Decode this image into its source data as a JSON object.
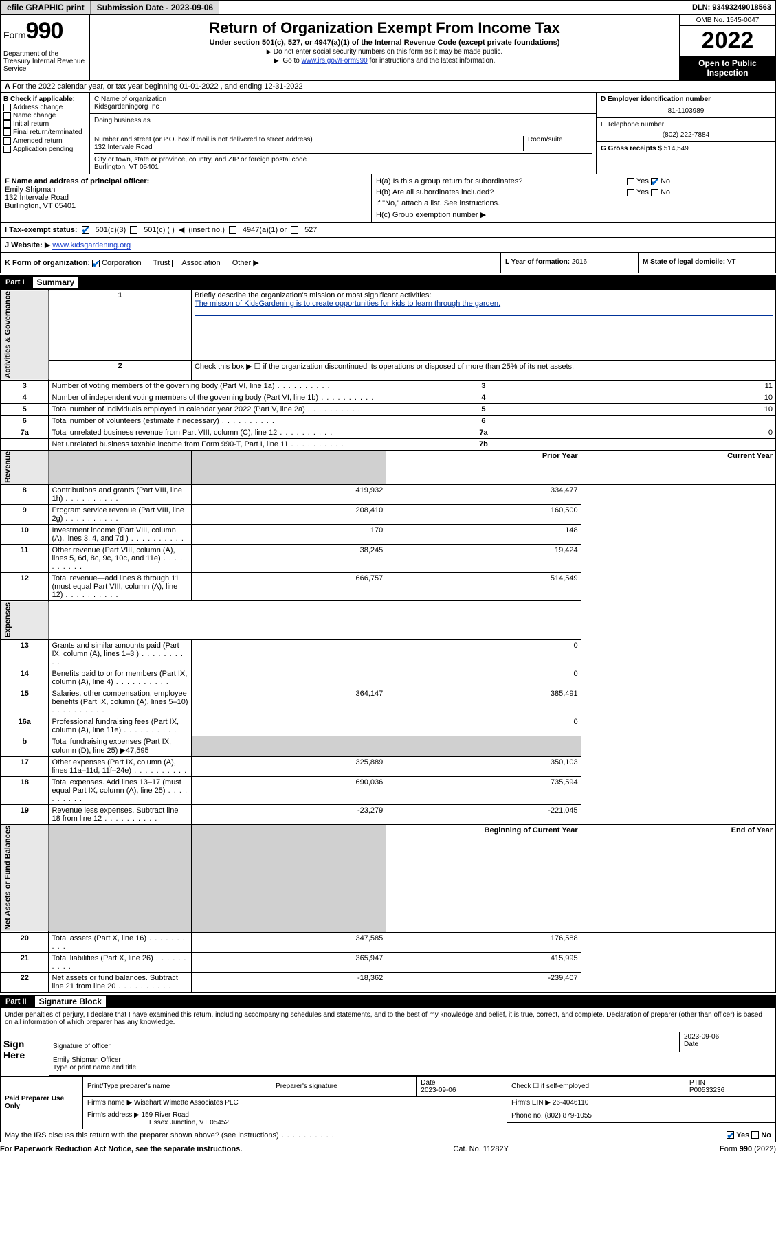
{
  "topbar": {
    "efile_label": "efile GRAPHIC print",
    "submission_label": "Submission Date - 2023-09-06",
    "dln_label": "DLN: 93493249018563"
  },
  "header": {
    "form_label": "Form",
    "form_number": "990",
    "dept": "Department of the Treasury Internal Revenue Service",
    "title": "Return of Organization Exempt From Income Tax",
    "subtitle": "Under section 501(c), 527, or 4947(a)(1) of the Internal Revenue Code (except private foundations)",
    "note1": "Do not enter social security numbers on this form as it may be made public.",
    "note2_pre": "Go to ",
    "note2_link": "www.irs.gov/Form990",
    "note2_post": " for instructions and the latest information.",
    "omb": "OMB No. 1545-0047",
    "year": "2022",
    "open_public": "Open to Public Inspection"
  },
  "rowA": {
    "text": "For the 2022 calendar year, or tax year beginning 01-01-2022   , and ending 12-31-2022"
  },
  "boxB": {
    "label": "B Check if applicable:",
    "items": [
      "Address change",
      "Name change",
      "Initial return",
      "Final return/terminated",
      "Amended return",
      "Application pending"
    ]
  },
  "boxC": {
    "name_label": "C Name of organization",
    "name": "Kidsgardeningorg Inc",
    "dba_label": "Doing business as",
    "street_label": "Number and street (or P.O. box if mail is not delivered to street address)",
    "suite_label": "Room/suite",
    "street": "132 Intervale Road",
    "city_label": "City or town, state or province, country, and ZIP or foreign postal code",
    "city": "Burlington, VT  05401"
  },
  "boxD": {
    "label": "D Employer identification number",
    "value": "81-1103989"
  },
  "boxE": {
    "label": "E Telephone number",
    "value": "(802) 222-7884"
  },
  "boxG": {
    "label": "G Gross receipts $",
    "value": "514,549"
  },
  "boxF": {
    "label": "F  Name and address of principal officer:",
    "name": "Emily Shipman",
    "street": "132 Intervale Road",
    "city": "Burlington, VT  05401"
  },
  "boxH": {
    "ha_label": "H(a)  Is this a group return for subordinates?",
    "ha_yes": "Yes",
    "ha_no": "No",
    "hb_label": "H(b)  Are all subordinates included?",
    "hb_yes": "Yes",
    "hb_no": "No",
    "hb_note": "If \"No,\" attach a list. See instructions.",
    "hc_label": "H(c)  Group exemption number"
  },
  "rowI": {
    "label": "I   Tax-exempt status:",
    "c3": "501(c)(3)",
    "cinsert": "501(c) (  )",
    "insertno": "(insert no.)",
    "a1": "4947(a)(1) or",
    "c527": "527"
  },
  "rowJ": {
    "label": "J   Website:",
    "value": "www.kidsgardening.org"
  },
  "rowK": {
    "label": "K Form of organization:",
    "corp": "Corporation",
    "trust": "Trust",
    "assoc": "Association",
    "other": "Other"
  },
  "rowL": {
    "label": "L Year of formation:",
    "value": "2016"
  },
  "rowM": {
    "label": "M State of legal domicile:",
    "value": "VT"
  },
  "partI": {
    "num": "Part I",
    "title": "Summary"
  },
  "summary": {
    "section_labels": [
      "Activities & Governance",
      "Revenue",
      "Expenses",
      "Net Assets or Fund Balances"
    ],
    "line1_label": "Briefly describe the organization's mission or most significant activities:",
    "line1_text": "The misson of KidsGardening is to create opportunities for kids to learn through the garden.",
    "line2_label": "Check this box ▶ ☐  if the organization discontinued its operations or disposed of more than 25% of its net assets.",
    "lines_top": [
      {
        "n": "3",
        "label": "Number of voting members of the governing body (Part VI, line 1a)",
        "box": "3",
        "val": "11"
      },
      {
        "n": "4",
        "label": "Number of independent voting members of the governing body (Part VI, line 1b)",
        "box": "4",
        "val": "10"
      },
      {
        "n": "5",
        "label": "Total number of individuals employed in calendar year 2022 (Part V, line 2a)",
        "box": "5",
        "val": "10"
      },
      {
        "n": "6",
        "label": "Total number of volunteers (estimate if necessary)",
        "box": "6",
        "val": ""
      },
      {
        "n": "7a",
        "label": "Total unrelated business revenue from Part VIII, column (C), line 12",
        "box": "7a",
        "val": "0"
      },
      {
        "n": "",
        "label": "Net unrelated business taxable income from Form 990-T, Part I, line 11",
        "box": "7b",
        "val": ""
      }
    ],
    "col_prior": "Prior Year",
    "col_current": "Current Year",
    "col_begin": "Beginning of Current Year",
    "col_end": "End of Year",
    "revenue": [
      {
        "n": "8",
        "label": "Contributions and grants (Part VIII, line 1h)",
        "prior": "419,932",
        "curr": "334,477"
      },
      {
        "n": "9",
        "label": "Program service revenue (Part VIII, line 2g)",
        "prior": "208,410",
        "curr": "160,500"
      },
      {
        "n": "10",
        "label": "Investment income (Part VIII, column (A), lines 3, 4, and 7d )",
        "prior": "170",
        "curr": "148"
      },
      {
        "n": "11",
        "label": "Other revenue (Part VIII, column (A), lines 5, 6d, 8c, 9c, 10c, and 11e)",
        "prior": "38,245",
        "curr": "19,424"
      },
      {
        "n": "12",
        "label": "Total revenue—add lines 8 through 11 (must equal Part VIII, column (A), line 12)",
        "prior": "666,757",
        "curr": "514,549"
      }
    ],
    "expenses": [
      {
        "n": "13",
        "label": "Grants and similar amounts paid (Part IX, column (A), lines 1–3 )",
        "prior": "",
        "curr": "0"
      },
      {
        "n": "14",
        "label": "Benefits paid to or for members (Part IX, column (A), line 4)",
        "prior": "",
        "curr": "0"
      },
      {
        "n": "15",
        "label": "Salaries, other compensation, employee benefits (Part IX, column (A), lines 5–10)",
        "prior": "364,147",
        "curr": "385,491"
      },
      {
        "n": "16a",
        "label": "Professional fundraising fees (Part IX, column (A), line 11e)",
        "prior": "",
        "curr": "0"
      },
      {
        "n": "b",
        "label": "Total fundraising expenses (Part IX, column (D), line 25) ▶47,595",
        "prior": "",
        "curr": "",
        "single": true
      },
      {
        "n": "17",
        "label": "Other expenses (Part IX, column (A), lines 11a–11d, 11f–24e)",
        "prior": "325,889",
        "curr": "350,103"
      },
      {
        "n": "18",
        "label": "Total expenses. Add lines 13–17 (must equal Part IX, column (A), line 25)",
        "prior": "690,036",
        "curr": "735,594"
      },
      {
        "n": "19",
        "label": "Revenue less expenses. Subtract line 18 from line 12",
        "prior": "-23,279",
        "curr": "-221,045"
      }
    ],
    "net": [
      {
        "n": "20",
        "label": "Total assets (Part X, line 16)",
        "prior": "347,585",
        "curr": "176,588"
      },
      {
        "n": "21",
        "label": "Total liabilities (Part X, line 26)",
        "prior": "365,947",
        "curr": "415,995"
      },
      {
        "n": "22",
        "label": "Net assets or fund balances. Subtract line 21 from line 20",
        "prior": "-18,362",
        "curr": "-239,407"
      }
    ]
  },
  "partII": {
    "num": "Part II",
    "title": "Signature Block"
  },
  "sig": {
    "pen_text": "Under penalties of perjury, I declare that I have examined this return, including accompanying schedules and statements, and to the best of my knowledge and belief, it is true, correct, and complete. Declaration of preparer (other than officer) is based on all information of which preparer has any knowledge.",
    "sign_here": "Sign Here",
    "sig_officer": "Signature of officer",
    "date": "2023-09-06",
    "date_label": "Date",
    "officer_name": "Emily Shipman  Officer",
    "type_label": "Type or print name and title"
  },
  "preparer": {
    "title": "Paid Preparer Use Only",
    "h_name": "Print/Type preparer's name",
    "h_sig": "Preparer's signature",
    "h_date": "Date",
    "date": "2023-09-06",
    "h_check": "Check ☐ if self-employed",
    "h_ptin": "PTIN",
    "ptin": "P00533236",
    "firm_name_label": "Firm's name   ▶",
    "firm_name": "Wisehart Wimette Associates PLC",
    "firm_ein_label": "Firm's EIN ▶",
    "firm_ein": "26-4046110",
    "firm_addr_label": "Firm's address ▶",
    "firm_addr1": "159 River Road",
    "firm_addr2": "Essex Junction, VT  05452",
    "phone_label": "Phone no.",
    "phone": "(802) 879-1055"
  },
  "discuss": {
    "text": "May the IRS discuss this return with the preparer shown above? (see instructions)",
    "yes": "Yes",
    "no": "No"
  },
  "footer": {
    "left": "For Paperwork Reduction Act Notice, see the separate instructions.",
    "center": "Cat. No. 11282Y",
    "right": "Form 990 (2022)"
  }
}
